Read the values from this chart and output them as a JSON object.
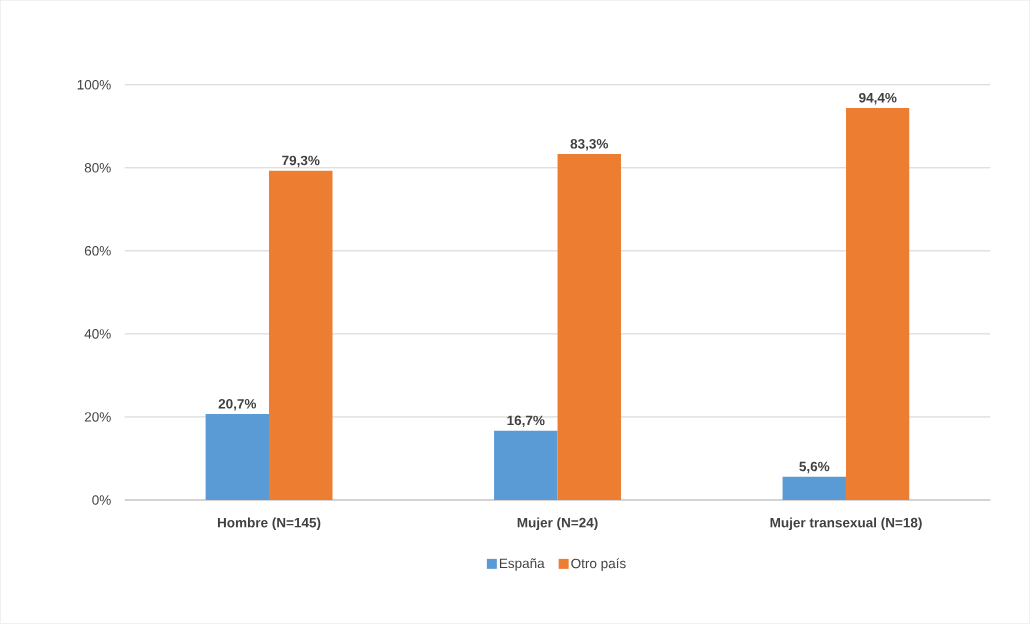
{
  "chart_data": {
    "type": "bar",
    "categories": [
      "Hombre (N=145)",
      "Mujer (N=24)",
      "Mujer transexual (N=18)"
    ],
    "series": [
      {
        "name": "España",
        "color": "#5b9bd5",
        "values": [
          20.7,
          16.7,
          5.6
        ],
        "value_labels": [
          "20,7%",
          "16,7%",
          "5,6%"
        ]
      },
      {
        "name": "Otro país",
        "color": "#ed7d31",
        "values": [
          79.3,
          83.3,
          94.4
        ],
        "value_labels": [
          "79,3%",
          "83,3%",
          "94,4%"
        ]
      }
    ],
    "ylim": [
      0,
      100
    ],
    "yticks": [
      {
        "value": 0,
        "label": "0%"
      },
      {
        "value": 20,
        "label": "20%"
      },
      {
        "value": 40,
        "label": "40%"
      },
      {
        "value": 60,
        "label": "60%"
      },
      {
        "value": 80,
        "label": "80%"
      },
      {
        "value": 100,
        "label": "100%"
      }
    ],
    "grid": "y",
    "legend": "bottom"
  }
}
